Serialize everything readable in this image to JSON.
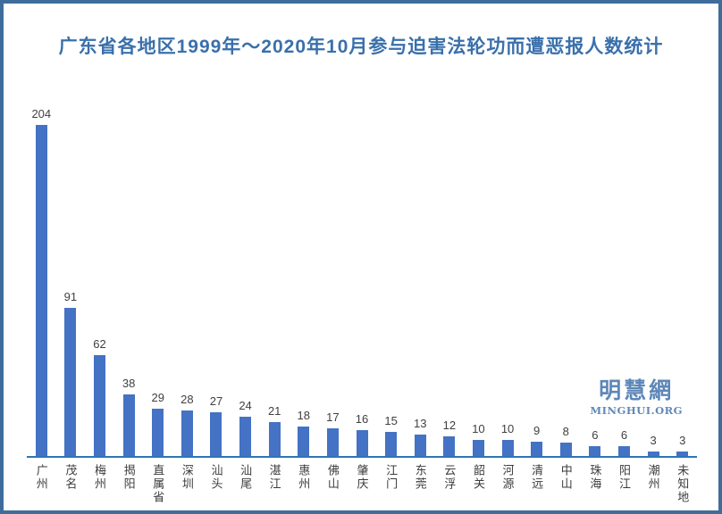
{
  "page": {
    "title": "广东省各地区1999年～2020年10月参与迫害法轮功而遭恶报人数统计"
  },
  "logo": {
    "cjk": "明慧網",
    "latin": "MINGHUI.ORG"
  },
  "colors": {
    "bar": "#4472C4",
    "axis_line": "#2E75B6",
    "title_text": "#3A70AB",
    "page_border": "#3E6D9C",
    "value_label": "#404040",
    "category_label": "#3C3C3C",
    "logo_blue": "#5D87B8"
  },
  "chart_data": {
    "type": "bar",
    "title": "广东省各地区1999年～2020年10月参与迫害法轮功而遭恶报人数统计",
    "categories": [
      "广州",
      "茂名",
      "梅州",
      "揭阳",
      "直属省",
      "深圳",
      "汕头",
      "汕尾",
      "湛江",
      "惠州",
      "佛山",
      "肇庆",
      "江门",
      "东莞",
      "云浮",
      "韶关",
      "河源",
      "清远",
      "中山",
      "珠海",
      "阳江",
      "潮州",
      "未知地"
    ],
    "values": [
      204,
      91,
      62,
      38,
      29,
      28,
      27,
      24,
      21,
      18,
      17,
      16,
      15,
      13,
      12,
      10,
      10,
      9,
      8,
      6,
      6,
      3,
      3
    ],
    "xlabel": "",
    "ylabel": "",
    "ylim": [
      0,
      215
    ],
    "grid": false,
    "legend": false,
    "data_labels": true,
    "bar_color": "#4472C4"
  }
}
